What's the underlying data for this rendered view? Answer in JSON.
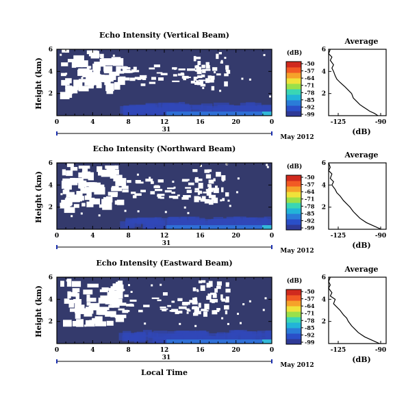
{
  "colors": {
    "background": "#343a6c",
    "colormap": [
      "#2f3a96",
      "#2a4fc8",
      "#2a7cd8",
      "#22b4d8",
      "#3ad6b4",
      "#9ae04a",
      "#f0e23a",
      "#f6a22a",
      "#f25a24",
      "#d02a1e"
    ]
  },
  "shared": {
    "ylabel": "Height (km)",
    "xticks": [
      "0",
      "4",
      "8",
      "12",
      "16",
      "20",
      "0"
    ],
    "day_label": "31",
    "month_label": "May 2012",
    "xlabel": "Local Time",
    "avg_title": "Average",
    "avg_xlabel": "(dB)",
    "avg_xticks": [
      "-125",
      "-90"
    ],
    "cbar_title": "(dB)",
    "cbar_ticks": [
      "-50",
      "-57",
      "-64",
      "-71",
      "-78",
      "-85",
      "-92",
      "-99"
    ]
  },
  "chart_data": [
    {
      "type": "heatmap",
      "title": "Echo Intensity (Vertical Beam)",
      "xlabel": "",
      "ylabel": "Height (km)",
      "xlim": [
        0,
        24
      ],
      "ylim": [
        0,
        6
      ],
      "y_ticks": [
        "6",
        "4",
        "2"
      ],
      "clim": [
        -99,
        -50
      ],
      "colorbar": "(dB)",
      "background_db": -98,
      "average_profile": {
        "title": "Average",
        "xlabel": "(dB)",
        "xlim": [
          -125,
          -90
        ],
        "y_ticks": [
          "6",
          "4",
          "2"
        ],
        "height_km": [
          0.0,
          0.2,
          0.4,
          0.6,
          0.8,
          1.0,
          1.3,
          1.6,
          2.0,
          2.3,
          2.6,
          3.0,
          3.3,
          3.6,
          4.0,
          4.3,
          4.6,
          5.0,
          5.3,
          5.6,
          6.0
        ],
        "db": [
          -95,
          -97,
          -100,
          -102,
          -104,
          -106,
          -108,
          -110,
          -111,
          -113,
          -115,
          -118,
          -120,
          -121,
          -122,
          -123,
          -122,
          -124,
          -123,
          -125,
          -124
        ]
      }
    },
    {
      "type": "heatmap",
      "title": "Echo Intensity (Northward Beam)",
      "xlabel": "",
      "ylabel": "Height (km)",
      "xlim": [
        0,
        24
      ],
      "ylim": [
        0,
        6
      ],
      "y_ticks": [
        "6",
        "4",
        "2"
      ],
      "clim": [
        -99,
        -50
      ],
      "colorbar": "(dB)",
      "background_db": -98,
      "average_profile": {
        "title": "Average",
        "xlabel": "(dB)",
        "xlim": [
          -125,
          -90
        ],
        "y_ticks": [
          "6",
          "4",
          "2"
        ],
        "height_km": [
          0.0,
          0.2,
          0.4,
          0.6,
          0.8,
          1.0,
          1.3,
          1.6,
          2.0,
          2.3,
          2.6,
          3.0,
          3.3,
          3.6,
          4.0,
          4.3,
          4.6,
          5.0,
          5.3,
          5.6,
          6.0
        ],
        "db": [
          -93,
          -96,
          -99,
          -102,
          -104,
          -106,
          -108,
          -110,
          -112,
          -114,
          -116,
          -118,
          -120,
          -121,
          -123,
          -122,
          -124,
          -123,
          -125,
          -124,
          -125
        ]
      }
    },
    {
      "type": "heatmap",
      "title": "Echo Intensity (Eastward Beam)",
      "xlabel": "Local Time",
      "ylabel": "Height (km)",
      "xlim": [
        0,
        24
      ],
      "ylim": [
        0,
        6
      ],
      "y_ticks": [
        "6",
        "4",
        "2"
      ],
      "clim": [
        -99,
        -50
      ],
      "colorbar": "(dB)",
      "background_db": -98,
      "average_profile": {
        "title": "Average",
        "xlabel": "(dB)",
        "xlim": [
          -125,
          -90
        ],
        "y_ticks": [
          "6",
          "4",
          "2"
        ],
        "height_km": [
          0.0,
          0.2,
          0.4,
          0.6,
          0.8,
          1.0,
          1.3,
          1.6,
          2.0,
          2.3,
          2.6,
          3.0,
          3.3,
          3.6,
          4.0,
          4.3,
          4.6,
          5.0,
          5.3,
          5.6,
          6.0
        ],
        "db": [
          -94,
          -97,
          -100,
          -103,
          -105,
          -107,
          -109,
          -111,
          -113,
          -114,
          -116,
          -118,
          -120,
          -122,
          -121,
          -124,
          -123,
          -125,
          -124,
          -125,
          -124
        ]
      }
    }
  ]
}
